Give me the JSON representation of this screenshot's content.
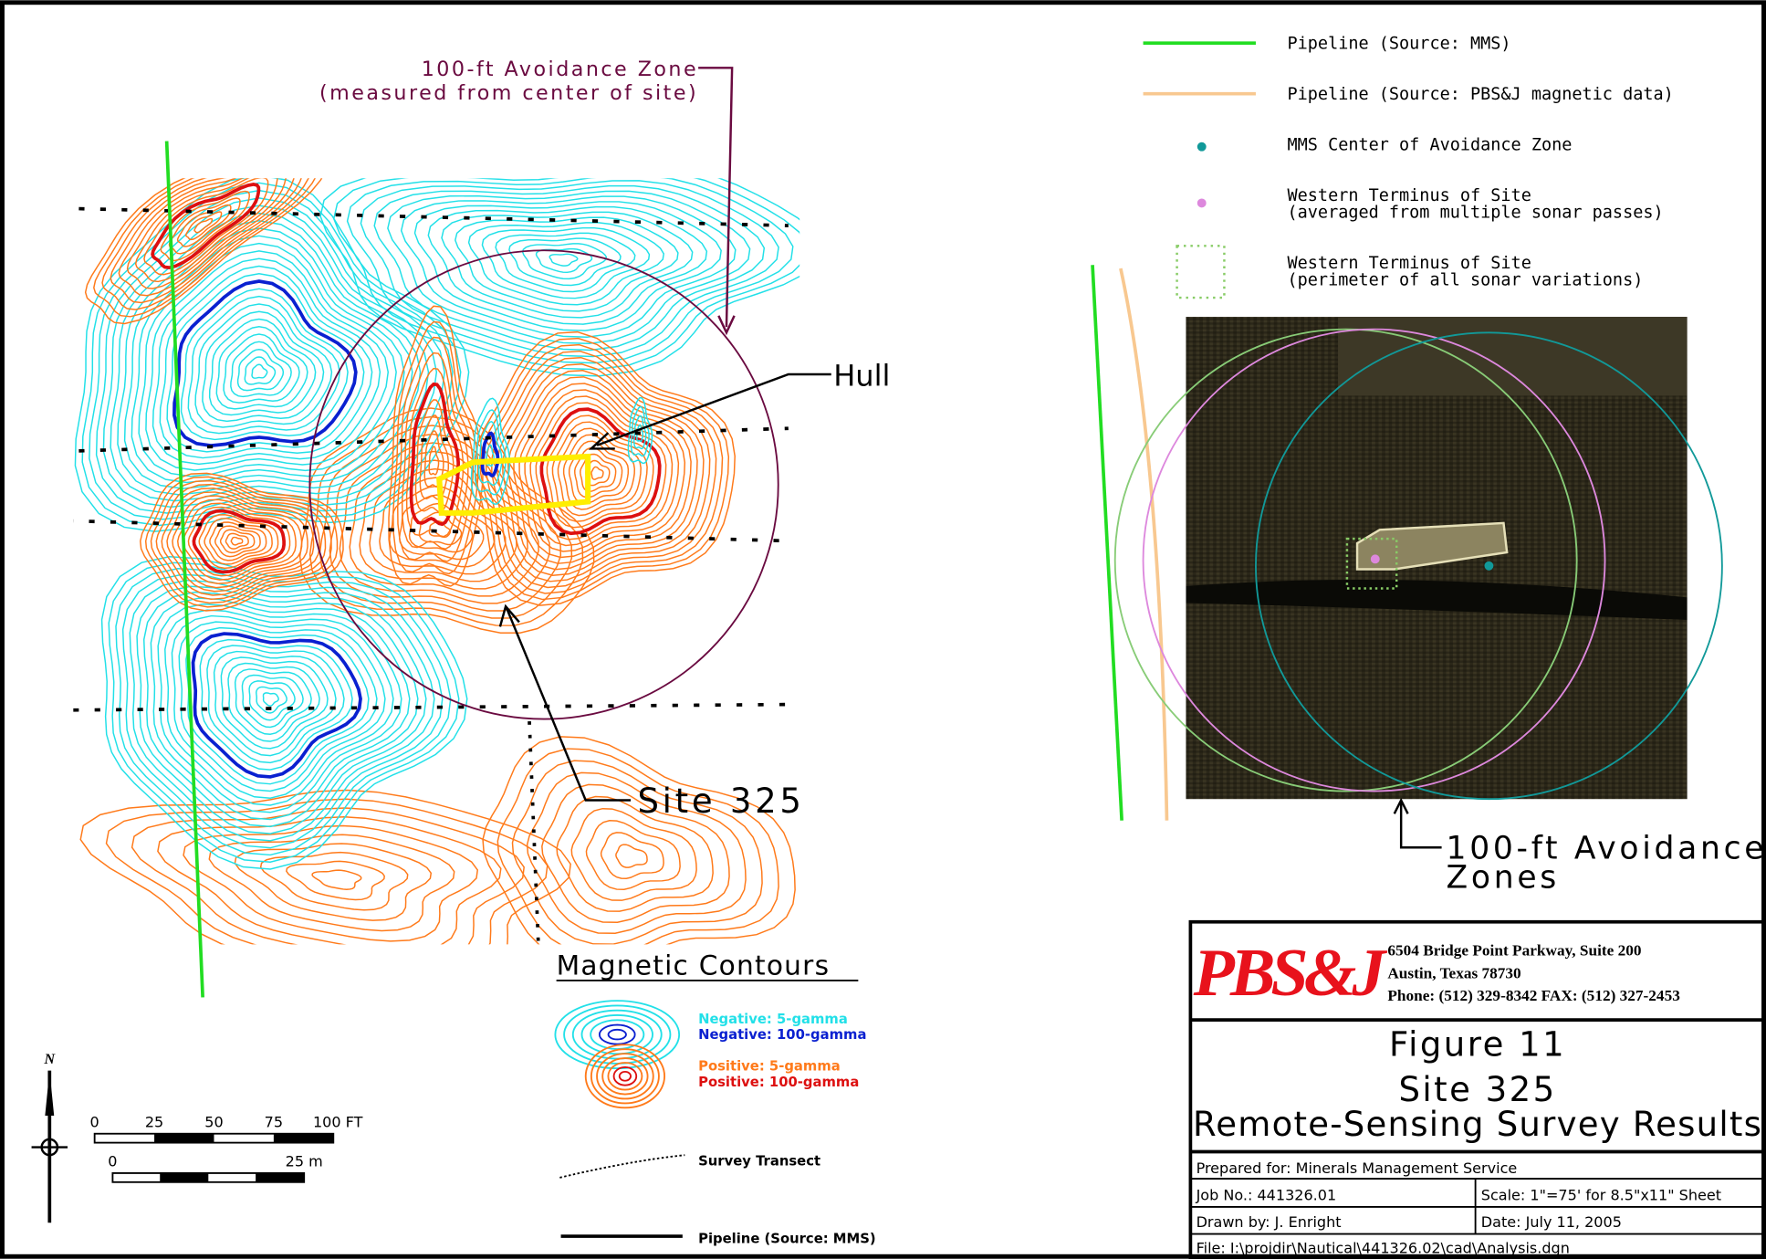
{
  "map": {
    "avoidance_label": [
      "100-ft Avoidance Zone",
      "(measured from center of site)"
    ],
    "hull_label": "Hull",
    "site_label": "Site 325"
  },
  "legend": {
    "items": [
      {
        "lines": [
          "Pipeline (Source: MMS)"
        ]
      },
      {
        "lines": [
          "Pipeline (Source: PBS&J magnetic data)"
        ]
      },
      {
        "lines": [
          "MMS Center of Avoidance Zone"
        ]
      },
      {
        "lines": [
          "Western Terminus of Site",
          "(averaged from multiple sonar passes)"
        ]
      },
      {
        "lines": [
          "Western Terminus of Site",
          "(perimeter of all sonar variations)"
        ]
      }
    ]
  },
  "sonar": {
    "label": [
      "100-ft Avoidance",
      "Zones"
    ]
  },
  "contours": {
    "title": "Magnetic Contours",
    "entries": [
      "Negative: 5-gamma",
      "Negative: 100-gamma",
      "Positive: 5-gamma",
      "Positive: 100-gamma"
    ],
    "survey": "Survey Transect",
    "pipeline": "Pipeline (Source: MMS)"
  },
  "scale": {
    "feet": [
      "0",
      "25",
      "50",
      "75",
      "100 FT"
    ],
    "meters": [
      "0",
      "25 m"
    ],
    "north": "N"
  },
  "title_block": {
    "logo": "PBS&J",
    "address": [
      "6504 Bridge Point Parkway, Suite 200",
      "Austin, Texas  78730",
      "Phone:  (512) 329-8342   FAX:  (512) 327-2453"
    ],
    "figure": [
      "Figure 11",
      "Site 325",
      "Remote-Sensing Survey Results"
    ],
    "prepared": "Prepared for: Minerals Management Service",
    "job": "Job No.: 441326.01",
    "scale": "Scale:   1\"=75' for 8.5\"x11\" Sheet",
    "drawn": "Drawn by: J. Enright",
    "date": "Date: July 11, 2005",
    "file": "File: I:\\projdir\\Nautical\\441326.02\\cad\\Analysis.dgn"
  }
}
